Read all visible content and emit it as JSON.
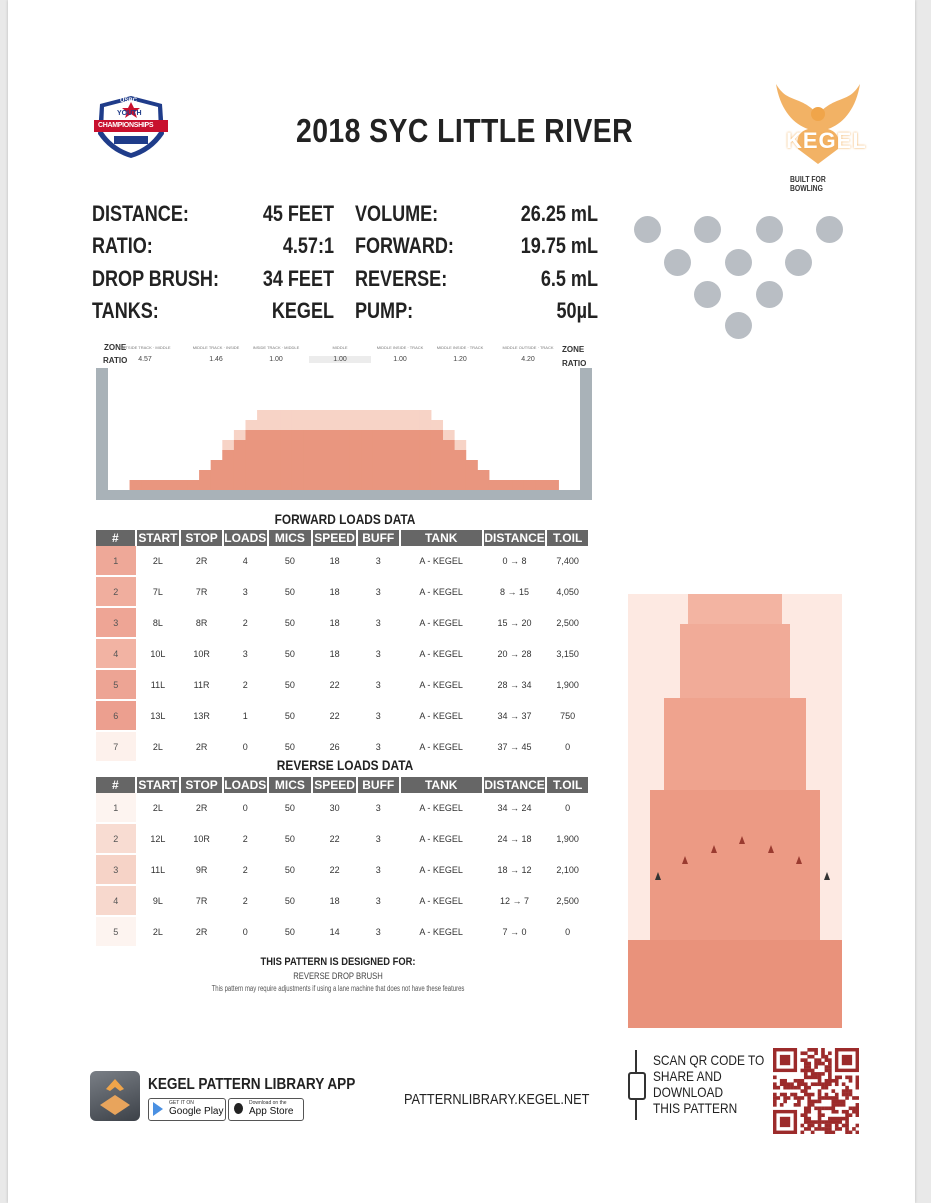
{
  "title": "2018 SYC LITTLE RIVER",
  "logo_left": {
    "top": "USBC",
    "mid": "YOUTH",
    "bottom": "CHAMPIONSHIPS"
  },
  "brand": {
    "name": "KEGEL",
    "tagline": "BUILT FOR BOWLING"
  },
  "specs": {
    "distance_label": "DISTANCE:",
    "distance": "45 FEET",
    "ratio_label": "RATIO:",
    "ratio": "4.57:1",
    "drop_brush_label": "DROP BRUSH:",
    "drop_brush": "34 FEET",
    "tanks_label": "TANKS:",
    "tanks": "KEGEL",
    "volume_label": "VOLUME:",
    "volume": "26.25 mL",
    "forward_label": "FORWARD:",
    "forward": "19.75 mL",
    "reverse_label": "REVERSE:",
    "reverse": "6.5 mL",
    "pump_label": "PUMP:",
    "pump": "50µL"
  },
  "zones": {
    "label_zone": "ZONE",
    "label_ratio": "RATIO",
    "ratios": [
      "4.57",
      "1.46",
      "1.00",
      "1.00",
      "1.00",
      "1.20",
      "4.20"
    ],
    "names": [
      "OUTSIDE TRACK · MIDDLE",
      "MIDDLE TRACK · INSIDE",
      "INSIDE TRACK · MIDDLE",
      "MIDDLE",
      "MIDDLE INSIDE · TRACK",
      "MIDDLE INSIDE · TRACK",
      "MIDDLE OUTSIDE · TRACK"
    ]
  },
  "chart_data": {
    "type": "area",
    "x": [
      1,
      2,
      3,
      4,
      5,
      6,
      7,
      8,
      9,
      10,
      11,
      12,
      13,
      14,
      15,
      16,
      17,
      18,
      19,
      20,
      21,
      22,
      23,
      24,
      25,
      26,
      27,
      28,
      29,
      30,
      31,
      32,
      33,
      34,
      35,
      36,
      37,
      38,
      39
    ],
    "forward_profile": [
      0,
      1,
      1,
      1,
      1,
      1,
      1,
      2,
      3,
      4,
      5,
      6,
      6,
      6,
      6,
      6,
      6,
      6,
      6,
      6,
      6,
      6,
      6,
      6,
      6,
      6,
      6,
      6,
      5,
      4,
      3,
      2,
      1,
      1,
      1,
      1,
      1,
      1,
      0
    ],
    "reverse_profile": [
      0,
      1,
      1,
      1,
      1,
      1,
      1,
      2,
      3,
      5,
      6,
      7,
      8,
      8,
      8,
      8,
      8,
      8,
      8,
      8,
      8,
      8,
      8,
      8,
      8,
      8,
      8,
      7,
      6,
      5,
      3,
      2,
      1,
      1,
      1,
      1,
      1,
      1,
      0
    ]
  },
  "forward": {
    "title": "FORWARD LOADS DATA",
    "headers": [
      "#",
      "START",
      "STOP",
      "LOADS",
      "MICS",
      "SPEED",
      "BUFF",
      "TANK",
      "DISTANCE",
      "T.OIL"
    ],
    "rows": [
      [
        "1",
        "2L",
        "2R",
        "4",
        "50",
        "18",
        "3",
        "A - KEGEL",
        "0 → 8",
        "7,400"
      ],
      [
        "2",
        "7L",
        "7R",
        "3",
        "50",
        "18",
        "3",
        "A - KEGEL",
        "8 → 15",
        "4,050"
      ],
      [
        "3",
        "8L",
        "8R",
        "2",
        "50",
        "18",
        "3",
        "A - KEGEL",
        "15 → 20",
        "2,500"
      ],
      [
        "4",
        "10L",
        "10R",
        "3",
        "50",
        "18",
        "3",
        "A - KEGEL",
        "20 → 28",
        "3,150"
      ],
      [
        "5",
        "11L",
        "11R",
        "2",
        "50",
        "22",
        "3",
        "A - KEGEL",
        "28 → 34",
        "1,900"
      ],
      [
        "6",
        "13L",
        "13R",
        "1",
        "50",
        "22",
        "3",
        "A - KEGEL",
        "34 → 37",
        "750"
      ],
      [
        "7",
        "2L",
        "2R",
        "0",
        "50",
        "26",
        "3",
        "A - KEGEL",
        "37 → 45",
        "0"
      ]
    ],
    "row_colors": [
      "#eea898",
      "#f0ae9e",
      "#eea595",
      "#f2b3a3",
      "#eda494",
      "#ec9f8f",
      "#fdf1ec"
    ]
  },
  "reverse": {
    "title": "REVERSE LOADS DATA",
    "headers": [
      "#",
      "START",
      "STOP",
      "LOADS",
      "MICS",
      "SPEED",
      "BUFF",
      "TANK",
      "DISTANCE",
      "T.OIL"
    ],
    "rows": [
      [
        "1",
        "2L",
        "2R",
        "0",
        "50",
        "30",
        "3",
        "A - KEGEL",
        "34 → 24",
        "0"
      ],
      [
        "2",
        "12L",
        "10R",
        "2",
        "50",
        "22",
        "3",
        "A - KEGEL",
        "24 → 18",
        "1,900"
      ],
      [
        "3",
        "11L",
        "9R",
        "2",
        "50",
        "22",
        "3",
        "A - KEGEL",
        "18 → 12",
        "2,100"
      ],
      [
        "4",
        "9L",
        "7R",
        "2",
        "50",
        "18",
        "3",
        "A - KEGEL",
        "12 → 7",
        "2,500"
      ],
      [
        "5",
        "2L",
        "2R",
        "0",
        "50",
        "14",
        "3",
        "A - KEGEL",
        "7 → 0",
        "0"
      ]
    ],
    "row_colors": [
      "#fdf4f0",
      "#f8dcd2",
      "#f6d3c7",
      "#f7d8cd",
      "#fdf4f0"
    ]
  },
  "designed": {
    "title": "THIS PATTERN IS DESIGNED FOR:",
    "item": "REVERSE DROP BRUSH",
    "note": "This pattern may require adjustments if using a lane machine that does not have these features"
  },
  "footer": {
    "app_title": "KEGEL PATTERN LIBRARY APP",
    "google_small": "GET IT ON",
    "google": "Google Play",
    "apple_small": "Download on the",
    "apple": "App Store",
    "url": "PATTERNLIBRARY.KEGEL.NET",
    "qr_text": [
      "SCAN QR CODE TO",
      "SHARE AND",
      "DOWNLOAD",
      "THIS PATTERN"
    ]
  },
  "colors": {
    "oil_dark": "#e9967f",
    "oil_light": "#f7d3c6",
    "header_gray": "#666666",
    "pin": "#b9bec4",
    "kegel_orange": "#f0a54a"
  }
}
